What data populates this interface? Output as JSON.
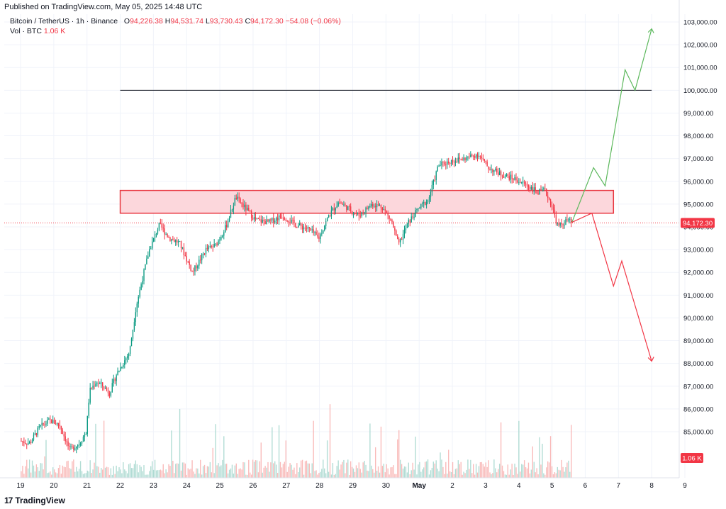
{
  "header": {
    "published": "Published on TradingView.com, May 05, 2025 14:48 UTC"
  },
  "legend": {
    "symbol": "Bitcoin / TetherUS · 1h · Binance",
    "o_label": "O",
    "o_value": "94,226.38",
    "h_label": "H",
    "h_value": "94,531.74",
    "l_label": "L",
    "l_value": "93,730.43",
    "c_label": "C",
    "c_value": "94,172.30",
    "change": "−54.08 (−0.06%)",
    "vol_label": "Vol · BTC",
    "vol_value": "1.06 K"
  },
  "footer": {
    "brand": "TradingView",
    "logo": "17"
  },
  "colors": {
    "up": "#089981",
    "down": "#f23645",
    "zone_fill": "#fcd7dc",
    "zone_border": "#e8363f",
    "bull_path": "#5cb85c",
    "bear_path": "#f23645",
    "level_line": "#131722"
  },
  "chart_data": {
    "type": "candlestick",
    "symbol": "BTCUSDT",
    "timeframe": "1h",
    "x_ticks": [
      "19",
      "20",
      "21",
      "22",
      "23",
      "24",
      "25",
      "26",
      "27",
      "28",
      "29",
      "30",
      "May",
      "2",
      "3",
      "4",
      "5",
      "6",
      "7",
      "8",
      "9"
    ],
    "y_ticks": [
      "85,000.00",
      "86,000.00",
      "87,000.00",
      "88,000.00",
      "89,000.00",
      "90,000.00",
      "91,000.00",
      "92,000.00",
      "93,000.00",
      "94,000.00",
      "95,000.00",
      "96,000.00",
      "97,000.00",
      "98,000.00",
      "99,000.00",
      "100,000.00",
      "101,000.00",
      "102,000.00",
      "103,000.00"
    ],
    "ylim": [
      84300,
      103300
    ],
    "last_price": 94172.3,
    "last_price_label": "94,172.30",
    "volume_label": "1.06 K",
    "price_path": [
      [
        "19",
        84600
      ],
      [
        "19.3",
        84500
      ],
      [
        "19.6",
        85200
      ],
      [
        "19.9",
        85500
      ],
      [
        "20.2",
        85300
      ],
      [
        "20.5",
        84200
      ],
      [
        "20.8",
        84500
      ],
      [
        "21.0",
        85000
      ],
      [
        "21.1",
        86800
      ],
      [
        "21.3",
        87200
      ],
      [
        "21.5",
        87000
      ],
      [
        "21.7",
        86700
      ],
      [
        "21.9",
        87500
      ],
      [
        "22.1",
        88000
      ],
      [
        "22.3",
        88500
      ],
      [
        "22.5",
        90500
      ],
      [
        "22.7",
        91800
      ],
      [
        "22.9",
        93000
      ],
      [
        "23.2",
        94100
      ],
      [
        "23.5",
        93500
      ],
      [
        "23.8",
        93300
      ],
      [
        "24.2",
        92000
      ],
      [
        "24.6",
        93000
      ],
      [
        "24.9",
        93200
      ],
      [
        "25.2",
        94000
      ],
      [
        "25.5",
        95300
      ],
      [
        "25.8",
        94800
      ],
      [
        "26.1",
        94300
      ],
      [
        "26.5",
        94200
      ],
      [
        "26.9",
        94500
      ],
      [
        "27.3",
        94100
      ],
      [
        "27.7",
        93900
      ],
      [
        "28.0",
        93500
      ],
      [
        "28.3",
        94500
      ],
      [
        "28.6",
        95100
      ],
      [
        "28.9",
        94800
      ],
      [
        "29.2",
        94500
      ],
      [
        "29.6",
        95000
      ],
      [
        "29.9",
        94900
      ],
      [
        "30.2",
        94200
      ],
      [
        "30.4",
        93200
      ],
      [
        "30.7",
        94200
      ],
      [
        "31.0",
        94800
      ],
      [
        "31.3",
        95200
      ],
      [
        "31.6",
        96700
      ],
      [
        "32.0",
        96900
      ],
      [
        "32.4",
        97000
      ],
      [
        "32.8",
        97200
      ],
      [
        "33.1",
        96600
      ],
      [
        "33.5",
        96300
      ],
      [
        "33.9",
        96100
      ],
      [
        "34.3",
        95800
      ],
      [
        "34.6",
        95500
      ],
      [
        "34.8",
        95600
      ],
      [
        "35.0",
        95000
      ],
      [
        "35.2",
        94000
      ],
      [
        "35.5",
        94300
      ],
      [
        "35.6",
        94172
      ]
    ],
    "resistance_zone": [
      94600,
      95600
    ],
    "level_line": 100000,
    "bullish_projection": [
      94200,
      96600,
      95800,
      100900,
      100000,
      102700
    ],
    "bearish_projection": [
      94200,
      94600,
      91400,
      92500,
      88100
    ]
  }
}
